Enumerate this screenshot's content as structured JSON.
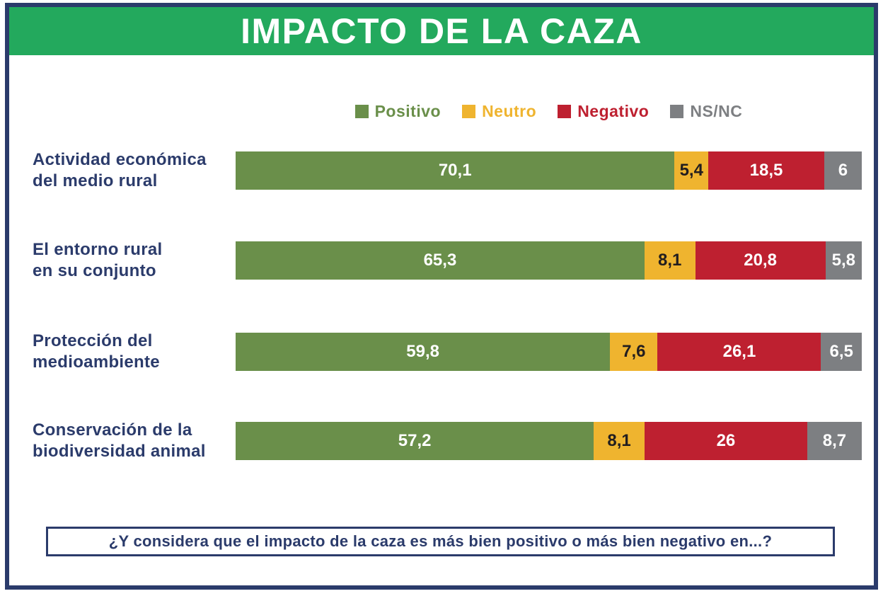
{
  "title": "IMPACTO DE LA CAZA",
  "question": "¿Y considera que el impacto de la caza es más bien positivo o más bien negativo en...?",
  "colors": {
    "header_green": "#23A95D",
    "navy": "#2B3B6B",
    "positivo": "#6A8F4A",
    "neutro": "#EFB42F",
    "negativo": "#BE2030",
    "nsnc": "#7D7F82"
  },
  "legend": [
    {
      "label": "Positivo",
      "key": "positivo"
    },
    {
      "label": "Neutro",
      "key": "neutro"
    },
    {
      "label": "Negativo",
      "key": "negativo"
    },
    {
      "label": "NS/NC",
      "key": "nsnc"
    }
  ],
  "chart_data": {
    "type": "bar",
    "orientation": "horizontal",
    "stacked": true,
    "title": "IMPACTO DE LA CAZA",
    "xlim": [
      0,
      100
    ],
    "grid": false,
    "legend_position": "top-center",
    "categories": [
      "Actividad económica del medio rural",
      "El entorno rural en su conjunto",
      "Protección del medioambiente",
      "Conservación de la biodiversidad animal"
    ],
    "category_lines": [
      [
        "Actividad económica",
        "del medio rural"
      ],
      [
        "El entorno rural",
        "en su conjunto"
      ],
      [
        "Protección del",
        "medioambiente"
      ],
      [
        "Conservación de la",
        "biodiversidad animal"
      ]
    ],
    "series": [
      {
        "name": "Positivo",
        "key": "positivo",
        "values": [
          70.1,
          65.3,
          59.8,
          57.2
        ],
        "labels": [
          "70,1",
          "65,3",
          "59,8",
          "57,2"
        ],
        "text_color": "#FFFFFF"
      },
      {
        "name": "Neutro",
        "key": "neutro",
        "values": [
          5.4,
          8.1,
          7.6,
          8.1
        ],
        "labels": [
          "5,4",
          "8,1",
          "7,6",
          "8,1"
        ],
        "text_color": "#221E1F"
      },
      {
        "name": "Negativo",
        "key": "negativo",
        "values": [
          18.5,
          20.8,
          26.1,
          26.0
        ],
        "labels": [
          "18,5",
          "20,8",
          "26,1",
          "26"
        ],
        "text_color": "#FFFFFF"
      },
      {
        "name": "NS/NC",
        "key": "nsnc",
        "values": [
          6.0,
          5.8,
          6.5,
          8.7
        ],
        "labels": [
          "6",
          "5,8",
          "6,5",
          "8,7"
        ],
        "text_color": "#FFFFFF"
      }
    ]
  },
  "layout": {
    "row_tops": [
      204,
      331,
      460,
      586
    ]
  }
}
